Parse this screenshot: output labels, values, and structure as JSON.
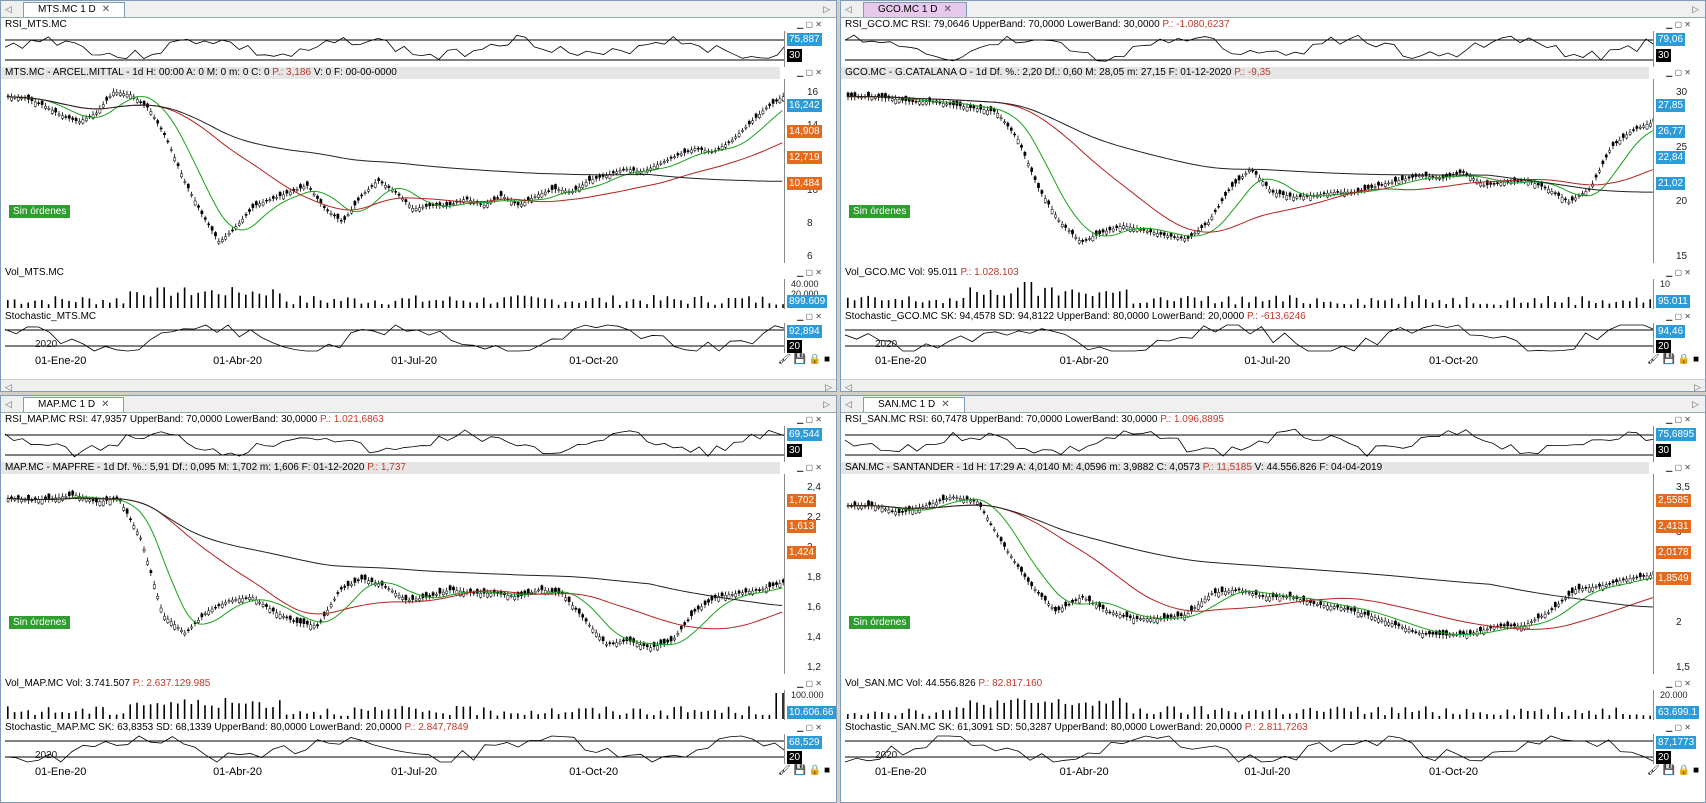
{
  "panes": [
    {
      "tab": "MTS.MC 1 D",
      "tab_active": false,
      "rsi_title": "RSI_MTS.MC",
      "rsi_red": "",
      "rsi_badges": [
        "75,887",
        "30"
      ],
      "price_title": "MTS.MC - ARCEL.MITTAL - 1d H: 00:00 A: 0 M: 0 m: 0 C: 0 ",
      "price_red": "P.: 3,186",
      "price_tail": " V: 0 F: 00-00-0000",
      "price_ticks": [
        "16",
        "14",
        "12",
        "10",
        "8",
        "6"
      ],
      "price_badges": [
        {
          "v": "16,242",
          "c": "blue"
        },
        {
          "v": "14,908",
          "c": "org"
        },
        {
          "v": "12,719",
          "c": "org"
        },
        {
          "v": "10,484",
          "c": "org"
        }
      ],
      "sin": "Sin órdenes",
      "vol_title": "Vol_MTS.MC",
      "vol_red": "",
      "vol_ticks": [
        "40.000",
        "20.000"
      ],
      "vol_badge": "899.609",
      "stoch_title": "Stochastic_MTS.MC",
      "stoch_red": "",
      "stoch_badges": [
        "92,894",
        "20"
      ],
      "year": "2020",
      "dates": [
        "01-Ene-20",
        "01-Abr-20",
        "01-Jul-20",
        "01-Oct-20"
      ]
    },
    {
      "tab": "GCO.MC 1 D",
      "tab_active": true,
      "rsi_title": "RSI_GCO.MC RSI: 79,0646 UpperBand: 70,0000 LowerBand: 30,0000 ",
      "rsi_red": "P.: -1.080,6237",
      "rsi_badges": [
        "79,06",
        "30"
      ],
      "price_title": "GCO.MC - G.CATALANA O - 1d Df. %.: 2,20 Df.: 0,60 M: 28,05 m: 27,15 F: 01-12-2020 ",
      "price_red": "P.: -9,35",
      "price_tail": "",
      "price_ticks": [
        "30",
        "25",
        "20",
        "15"
      ],
      "price_badges": [
        {
          "v": "27,85",
          "c": "blue"
        },
        {
          "v": "26,77",
          "c": "blue"
        },
        {
          "v": "22,84",
          "c": "blue"
        },
        {
          "v": "21,02",
          "c": "blue"
        }
      ],
      "sin": "Sin órdenes",
      "vol_title": "Vol_GCO.MC Vol: 95.011 ",
      "vol_red": "P.: 1.028.103",
      "vol_ticks": [
        "10"
      ],
      "vol_badge": "95.011",
      "stoch_title": "Stochastic_GCO.MC SK: 94,4578 SD: 94,8122 UpperBand: 80,0000 LowerBand: 20,0000 ",
      "stoch_red": "P.: -613,6246",
      "stoch_badges": [
        "94,46",
        "20"
      ],
      "year": "2020",
      "dates": [
        "01-Ene-20",
        "01-Abr-20",
        "01-Jul-20",
        "01-Oct-20"
      ]
    },
    {
      "tab": "MAP.MC 1 D",
      "tab_active": false,
      "rsi_title": "RSI_MAP.MC RSI: 47,9357 UpperBand: 70,0000 LowerBand: 30,0000 ",
      "rsi_red": "P.: 1.021,6863",
      "rsi_badges": [
        "69,544",
        "30"
      ],
      "price_title": "MAP.MC - MAPFRE - 1d Df. %.: 5,91 Df.: 0,095 M: 1,702 m: 1,606 F: 01-12-2020 ",
      "price_red": "P.: 1,737",
      "price_tail": "",
      "price_ticks": [
        "2,4",
        "2,2",
        "2",
        "1,8",
        "1,6",
        "1,4",
        "1,2"
      ],
      "price_badges": [
        {
          "v": "1,702",
          "c": "org"
        },
        {
          "v": "1,613",
          "c": "org"
        },
        {
          "v": "1,424",
          "c": "org"
        }
      ],
      "sin": "Sin órdenes",
      "vol_title": "Vol_MAP.MC Vol: 3.741.507 ",
      "vol_red": "P.: 2.637.129.985",
      "vol_ticks": [
        "100.000"
      ],
      "vol_badge": "10.606.66",
      "stoch_title": "Stochastic_MAP.MC SK: 63,8353 SD: 68,1339 UpperBand: 80,0000 LowerBand: 20,0000 ",
      "stoch_red": "P.: 2.847,7849",
      "stoch_badges": [
        "68,529",
        "20"
      ],
      "year": "2020",
      "dates": [
        "01-Ene-20",
        "01-Abr-20",
        "01-Jul-20",
        "01-Oct-20"
      ]
    },
    {
      "tab": "SAN.MC 1 D",
      "tab_active": false,
      "rsi_title": "RSI_SAN.MC RSI: 60,7478 UpperBand: 70,0000 LowerBand: 30,0000 ",
      "rsi_red": "P.: 1.096,8895",
      "rsi_badges": [
        "75,6895",
        "30"
      ],
      "price_title": "SAN.MC - SANTANDER - 1d H: 17:29 A: 4,0140 M: 4,0596 m: 3,9882 C: 4,0573 ",
      "price_red": "P.: 11,5185",
      "price_tail": " V: 44.556.826 F: 04-04-2019",
      "price_ticks": [
        "3,5",
        "3",
        "2,5",
        "2",
        "1,5"
      ],
      "price_badges": [
        {
          "v": "2,5585",
          "c": "org"
        },
        {
          "v": "2,4131",
          "c": "org"
        },
        {
          "v": "2,0178",
          "c": "org"
        },
        {
          "v": "1,8549",
          "c": "org"
        }
      ],
      "sin": "Sin órdenes",
      "vol_title": "Vol_SAN.MC Vol: 44.556.826 ",
      "vol_red": "P.: 82.817.160",
      "vol_ticks": [
        "20.000"
      ],
      "vol_badge": "63.699.1",
      "stoch_title": "Stochastic_SAN.MC SK: 61,3091 SD: 50,3287 UpperBand: 80,0000 LowerBand: 20,0000 ",
      "stoch_red": "P.: 2.811,7263",
      "stoch_badges": [
        "87,1773",
        "20"
      ],
      "year": "2020",
      "dates": [
        "01-Ene-20",
        "01-Abr-20",
        "01-Jul-20",
        "01-Oct-20"
      ]
    }
  ],
  "chart_data": [
    {
      "type": "line",
      "symbol": "MTS.MC",
      "title": "MTS.MC - ARCEL.MITTAL",
      "x": [
        "01-Ene-20",
        "01-Abr-20",
        "01-Jul-20",
        "01-Oct-20"
      ],
      "series": [],
      "ylim": [
        5,
        17
      ]
    },
    {
      "type": "line",
      "symbol": "GCO.MC",
      "title": "GCO.MC - G.CATALANA O",
      "x": [
        "01-Ene-20",
        "01-Abr-20",
        "01-Jul-20",
        "01-Oct-20"
      ],
      "series": [],
      "ylim": [
        14,
        33
      ]
    },
    {
      "type": "line",
      "symbol": "MAP.MC",
      "title": "MAP.MC - MAPFRE",
      "x": [
        "01-Ene-20",
        "01-Abr-20",
        "01-Jul-20",
        "01-Oct-20"
      ],
      "series": [],
      "ylim": [
        1.15,
        2.4
      ]
    },
    {
      "type": "line",
      "symbol": "SAN.MC",
      "title": "SAN.MC - SANTANDER",
      "x": [
        "01-Ene-20",
        "01-Abr-20",
        "01-Jul-20",
        "01-Oct-20"
      ],
      "series": [],
      "ylim": [
        1.3,
        4.0
      ]
    }
  ]
}
